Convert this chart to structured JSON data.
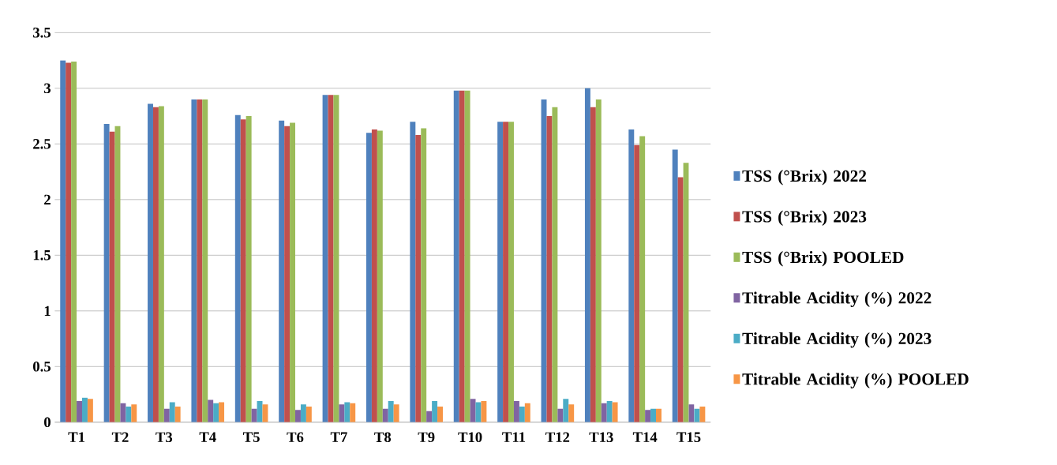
{
  "chart_data": {
    "type": "bar",
    "categories": [
      "T1",
      "T2",
      "T3",
      "T4",
      "T5",
      "T6",
      "T7",
      "T8",
      "T9",
      "T10",
      "T11",
      "T12",
      "T13",
      "T14",
      "T15"
    ],
    "series": [
      {
        "name": "TSS (°Brix) 2022",
        "color": "#4f81bd",
        "values": [
          3.25,
          2.68,
          2.86,
          2.9,
          2.76,
          2.71,
          2.94,
          2.6,
          2.7,
          2.98,
          2.7,
          2.9,
          3.0,
          2.63,
          2.45
        ]
      },
      {
        "name": "TSS (°Brix) 2023",
        "color": "#c0504d",
        "values": [
          3.23,
          2.61,
          2.83,
          2.9,
          2.72,
          2.66,
          2.94,
          2.63,
          2.58,
          2.98,
          2.7,
          2.75,
          2.83,
          2.49,
          2.2
        ]
      },
      {
        "name": "TSS (°Brix) POOLED",
        "color": "#9bbb59",
        "values": [
          3.24,
          2.66,
          2.84,
          2.9,
          2.75,
          2.69,
          2.94,
          2.62,
          2.64,
          2.98,
          2.7,
          2.83,
          2.9,
          2.57,
          2.33
        ]
      },
      {
        "name": "Titrable Acidity (%) 2022",
        "color": "#8064a2",
        "values": [
          0.19,
          0.17,
          0.12,
          0.2,
          0.12,
          0.11,
          0.16,
          0.12,
          0.1,
          0.21,
          0.19,
          0.12,
          0.17,
          0.11,
          0.16
        ]
      },
      {
        "name": "Titrable Acidity (%) 2023",
        "color": "#4bacc6",
        "values": [
          0.22,
          0.14,
          0.18,
          0.17,
          0.19,
          0.16,
          0.18,
          0.19,
          0.19,
          0.18,
          0.14,
          0.21,
          0.19,
          0.12,
          0.12
        ]
      },
      {
        "name": "Titrable Acidity (%) POOLED",
        "color": "#f79646",
        "values": [
          0.21,
          0.16,
          0.14,
          0.18,
          0.16,
          0.14,
          0.17,
          0.16,
          0.14,
          0.19,
          0.17,
          0.16,
          0.18,
          0.12,
          0.14
        ]
      }
    ],
    "ylim": [
      0,
      3.5
    ],
    "yticks": [
      0,
      0.5,
      1,
      1.5,
      2,
      2.5,
      3,
      3.5
    ],
    "grid": "y",
    "legend": "right"
  }
}
